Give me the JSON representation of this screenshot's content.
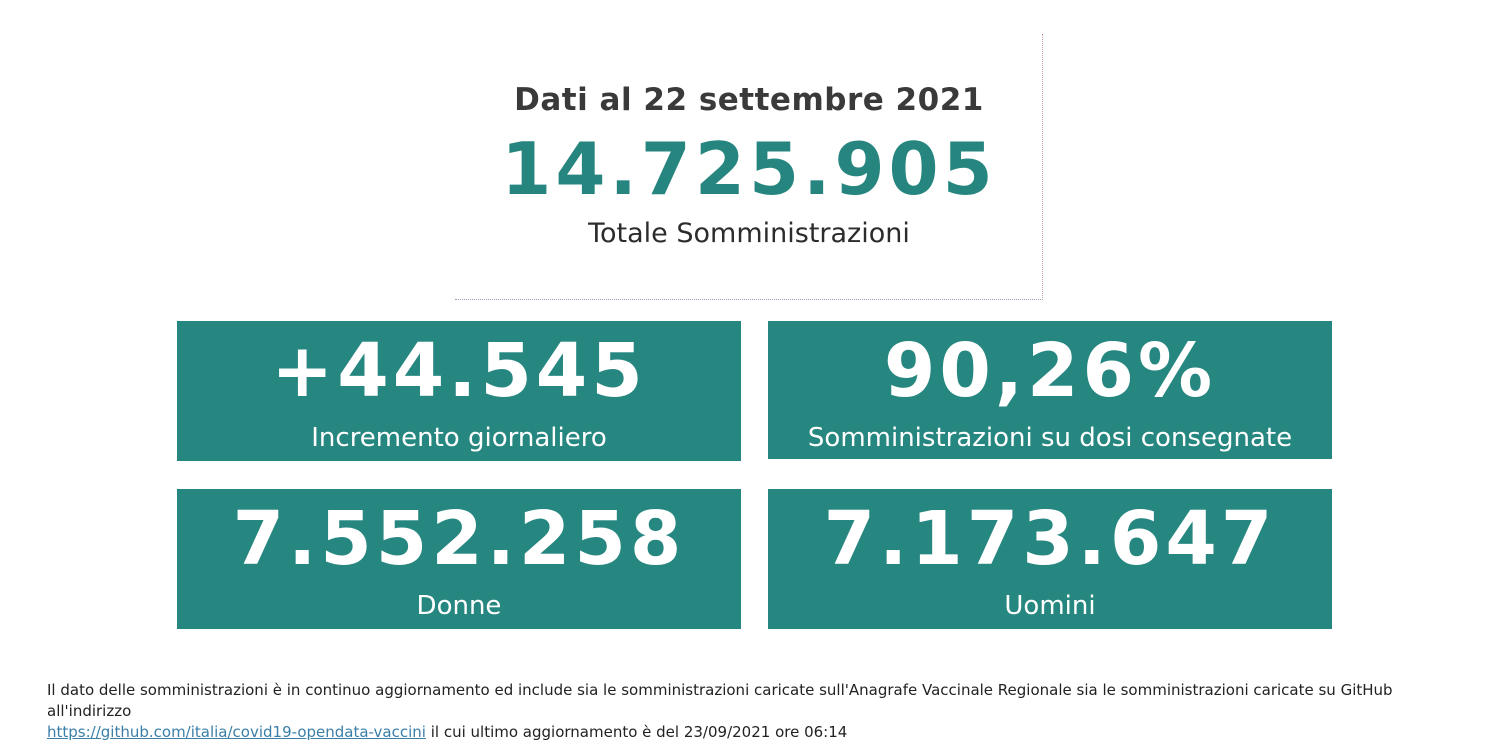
{
  "header": {
    "date_label": "Dati al 22 settembre 2021",
    "total_value": "14.725.905",
    "total_label": "Totale Somministrazioni",
    "accent_color": "#26867f"
  },
  "tiles": [
    {
      "value": "+44.545",
      "label": "Incremento giornaliero"
    },
    {
      "value": "90,26%",
      "label": "Somministrazioni su dosi consegnate"
    },
    {
      "value": "7.552.258",
      "label": "Donne"
    },
    {
      "value": "7.173.647",
      "label": "Uomini"
    }
  ],
  "tile_color": "#268680",
  "footnote": {
    "text_before": "Il dato delle somministrazioni è in continuo aggiornamento ed include sia le somministrazioni caricate sull'Anagrafe Vaccinale Regionale sia le somministrazioni caricate su GitHub all'indirizzo",
    "link_text": "https://github.com/italia/covid19-opendata-vaccini",
    "text_after": " il cui ultimo aggiornamento è del 23/09/2021 ore 06:14"
  }
}
